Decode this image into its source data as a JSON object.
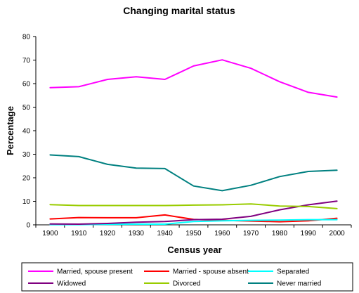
{
  "chart_data": {
    "type": "line",
    "title": "Changing marital status",
    "xlabel": "Census year",
    "ylabel": "Percentage",
    "x": [
      1900,
      1910,
      1920,
      1930,
      1940,
      1950,
      1960,
      1970,
      1980,
      1990,
      2000
    ],
    "ylim": [
      0,
      80
    ],
    "yticks": [
      0,
      10,
      20,
      30,
      40,
      50,
      60,
      70,
      80
    ],
    "grid": false,
    "legend_position": "bottom",
    "series": [
      {
        "name": "Married, spouse present",
        "color": "#ff00ff",
        "values": [
          58.3,
          58.7,
          61.8,
          62.9,
          61.8,
          67.5,
          70.1,
          66.5,
          60.8,
          56.3,
          54.3
        ]
      },
      {
        "name": "Married - spouse absent",
        "color": "#ff0000",
        "values": [
          2.5,
          3.1,
          3.0,
          3.0,
          4.2,
          2.3,
          1.9,
          1.6,
          1.3,
          1.7,
          2.8
        ]
      },
      {
        "name": "Separated",
        "color": "#00ffff",
        "values": [
          0.1,
          0.1,
          0.2,
          0.3,
          0.3,
          1.4,
          1.7,
          1.9,
          2.0,
          2.2,
          2.2
        ]
      },
      {
        "name": "Widowed",
        "color": "#800080",
        "values": [
          0.4,
          0.3,
          0.6,
          1.1,
          1.4,
          2.2,
          2.4,
          3.6,
          6.4,
          8.5,
          10.1
        ]
      },
      {
        "name": "Divorced",
        "color": "#99cc00",
        "values": [
          8.6,
          8.2,
          8.2,
          8.2,
          8.2,
          8.4,
          8.5,
          8.9,
          8.0,
          7.8,
          6.9
        ]
      },
      {
        "name": "Never married",
        "color": "#008080",
        "values": [
          29.7,
          29.0,
          25.7,
          24.1,
          23.9,
          16.5,
          14.5,
          16.8,
          20.5,
          22.7,
          23.2
        ]
      }
    ]
  }
}
